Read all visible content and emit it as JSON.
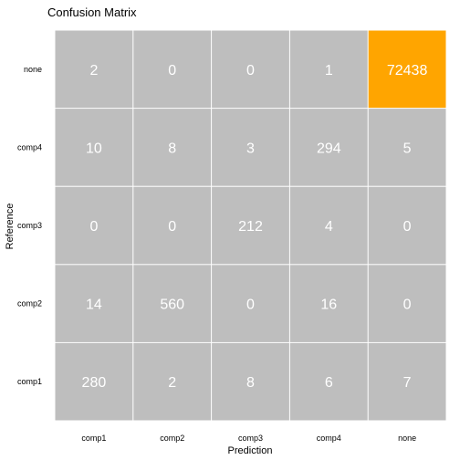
{
  "chart_data": {
    "type": "heatmap",
    "title": "Confusion Matrix",
    "xlabel": "Prediction",
    "ylabel": "Reference",
    "x_categories": [
      "comp1",
      "comp2",
      "comp3",
      "comp4",
      "none"
    ],
    "y_categories_top_to_bottom": [
      "none",
      "comp4",
      "comp3",
      "comp2",
      "comp1"
    ],
    "values": [
      [
        2,
        0,
        0,
        1,
        72438
      ],
      [
        10,
        8,
        3,
        294,
        5
      ],
      [
        0,
        0,
        212,
        4,
        0
      ],
      [
        14,
        560,
        0,
        16,
        0
      ],
      [
        280,
        2,
        8,
        6,
        7
      ]
    ],
    "highlight_cell": {
      "row": 0,
      "col": 4
    },
    "colors": {
      "cell": "#bebebe",
      "highlight": "#ffa500",
      "cell_text": "#ffffff",
      "grid": "#ffffff",
      "text": "#000000"
    },
    "grid": false,
    "legend": "none"
  }
}
